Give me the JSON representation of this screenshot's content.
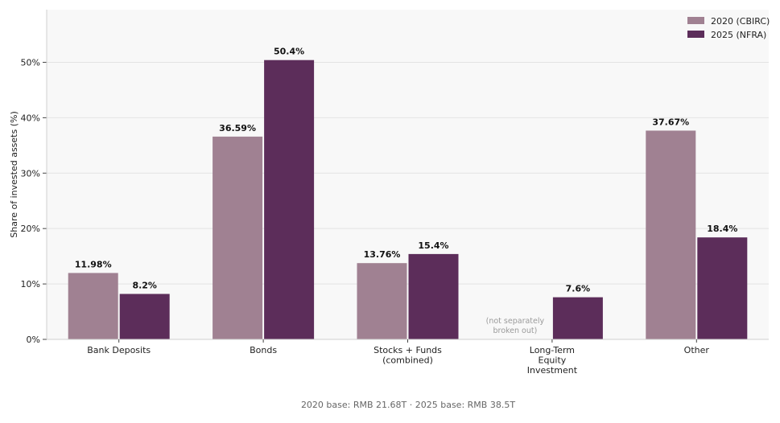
{
  "chart_data": {
    "type": "bar",
    "categories": [
      [
        "Bank Deposits"
      ],
      [
        "Bonds"
      ],
      [
        "Stocks + Funds",
        "(combined)"
      ],
      [
        "Long-Term",
        "Equity",
        "Investment"
      ],
      [
        "Other"
      ]
    ],
    "series": [
      {
        "name": "2020 (CBIRC)",
        "color": "#a08192",
        "values": [
          11.98,
          36.59,
          13.76,
          null,
          37.67
        ],
        "labels": [
          "11.98%",
          "36.59%",
          "13.76%",
          "",
          "37.67%"
        ]
      },
      {
        "name": "2025 (NFRA)",
        "color": "#5c2d5a",
        "values": [
          8.2,
          50.4,
          15.4,
          7.6,
          18.4
        ],
        "labels": [
          "8.2%",
          "50.4%",
          "15.4%",
          "7.6%",
          "18.4%"
        ]
      }
    ],
    "missing_note": [
      "(not separately",
      "broken out)"
    ],
    "ylabel": "Share of invested assets (%)",
    "ylim": [
      0,
      59.5
    ],
    "yticks": [
      0,
      10,
      20,
      30,
      40,
      50
    ],
    "ytick_labels": [
      "0%",
      "10%",
      "20%",
      "30%",
      "40%",
      "50%"
    ],
    "grid": true,
    "legend_position": "top-right",
    "footnote": "2020 base: RMB 21.68T  ·  2025 base: RMB 38.5T"
  }
}
